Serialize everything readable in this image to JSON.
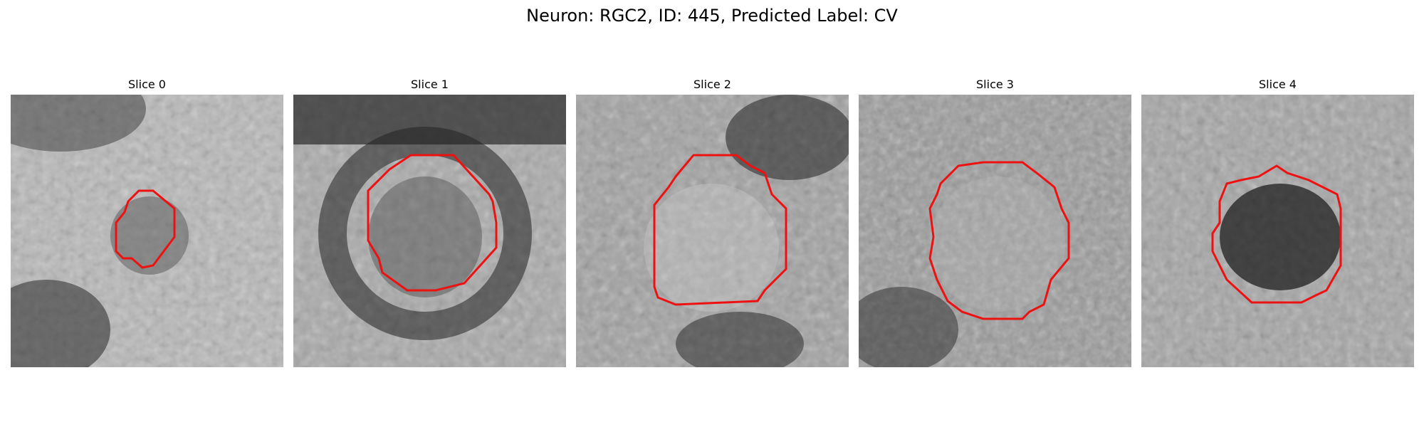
{
  "figure": {
    "title": "Neuron: RGC2, ID: 445, Predicted Label: CV"
  },
  "panels": [
    {
      "title": "Slice 0",
      "icon": "grayscale-microscopy-slice"
    },
    {
      "title": "Slice 1",
      "icon": "grayscale-microscopy-slice"
    },
    {
      "title": "Slice 2",
      "icon": "grayscale-microscopy-slice"
    },
    {
      "title": "Slice 3",
      "icon": "grayscale-microscopy-slice"
    },
    {
      "title": "Slice 4",
      "icon": "grayscale-microscopy-slice"
    }
  ],
  "colors": {
    "contour": "#ee1111",
    "background": "#ffffff"
  }
}
